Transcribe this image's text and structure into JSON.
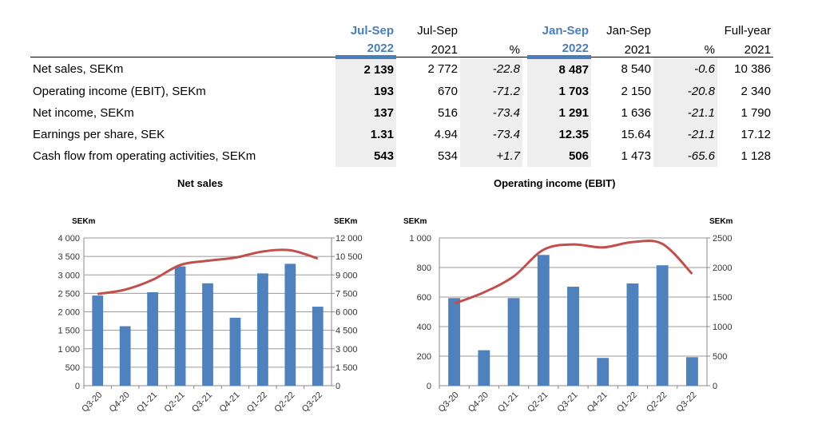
{
  "table": {
    "headers": [
      {
        "line1": "Jul-Sep",
        "line2": "2022",
        "highlight": true
      },
      {
        "line1": "Jul-Sep",
        "line2": "2021"
      },
      {
        "line1": "",
        "line2": "%"
      },
      {
        "line1": "Jan-Sep",
        "line2": "2022",
        "highlight": true
      },
      {
        "line1": "Jan-Sep",
        "line2": "2021"
      },
      {
        "line1": "",
        "line2": "%"
      },
      {
        "line1": "Full-year",
        "line2": "2021"
      }
    ],
    "rows": [
      {
        "label": "Net sales, SEKm",
        "values": [
          "2 139",
          "2 772",
          "-22.8",
          "8 487",
          "8 540",
          "-0.6",
          "10 386"
        ]
      },
      {
        "label": "Operating income (EBIT), SEKm",
        "values": [
          "193",
          "670",
          "-71.2",
          "1 703",
          "2 150",
          "-20.8",
          "2 340"
        ]
      },
      {
        "label": "Net income, SEKm",
        "values": [
          "137",
          "516",
          "-73.4",
          "1 291",
          "1 636",
          "-21.1",
          "1 790"
        ]
      },
      {
        "label": "Earnings per share, SEK",
        "values": [
          "1.31",
          "4.94",
          "-73.4",
          "12.35",
          "15.64",
          "-21.1",
          "17.12"
        ]
      },
      {
        "label": "Cash flow from operating activities, SEKm",
        "values": [
          "543",
          "534",
          "+1.7",
          "506",
          "1 473",
          "-65.6",
          "1 128"
        ]
      }
    ]
  },
  "chart_data": [
    {
      "type": "bar",
      "title": "Net sales",
      "categories": [
        "Q3-20",
        "Q4-20",
        "Q1-21",
        "Q2-21",
        "Q3-21",
        "Q4-21",
        "Q1-22",
        "Q2-22",
        "Q3-22"
      ],
      "ylabel": "SEKm",
      "y2label": "SEKm",
      "ylim": [
        0,
        4000
      ],
      "yticks": [
        "0",
        "500",
        "1 000",
        "1 500",
        "2 000",
        "2 500",
        "3 000",
        "3 500",
        "4 000"
      ],
      "y2lim": [
        0,
        12000
      ],
      "y2ticks": [
        "0",
        "1 500",
        "3 000",
        "4 500",
        "6 000",
        "7 500",
        "9 000",
        "10 500",
        "12 000"
      ],
      "grid": true,
      "series": [
        {
          "type": "bar",
          "axis": "left",
          "color": "#4f81bd",
          "values": [
            2440,
            1610,
            2530,
            3230,
            2772,
            1840,
            3040,
            3300,
            2139
          ]
        },
        {
          "type": "line",
          "axis": "right",
          "color": "#c0504d",
          "values": [
            7450,
            7800,
            8600,
            9800,
            10150,
            10400,
            10900,
            11000,
            10333
          ]
        }
      ]
    },
    {
      "type": "bar",
      "title": "Operating income (EBIT)",
      "categories": [
        "Q3-20",
        "Q4-20",
        "Q1-21",
        "Q2-21",
        "Q3-21",
        "Q4-21",
        "Q1-22",
        "Q2-22",
        "Q3-22"
      ],
      "ylabel": "SEKm",
      "y2label": "SEKm",
      "ylim": [
        0,
        1000
      ],
      "yticks": [
        "0",
        "200",
        "400",
        "600",
        "800",
        "1 000"
      ],
      "y2lim": [
        0,
        2500
      ],
      "y2ticks": [
        "0",
        "500",
        "1000",
        "1500",
        "2000",
        "2500"
      ],
      "grid": true,
      "series": [
        {
          "type": "bar",
          "axis": "left",
          "color": "#4f81bd",
          "values": [
            593,
            240,
            593,
            885,
            670,
            188,
            692,
            815,
            193
          ]
        },
        {
          "type": "line",
          "axis": "right",
          "color": "#c0504d",
          "values": [
            1390,
            1580,
            1850,
            2300,
            2390,
            2340,
            2430,
            2400,
            1893
          ]
        }
      ]
    }
  ]
}
